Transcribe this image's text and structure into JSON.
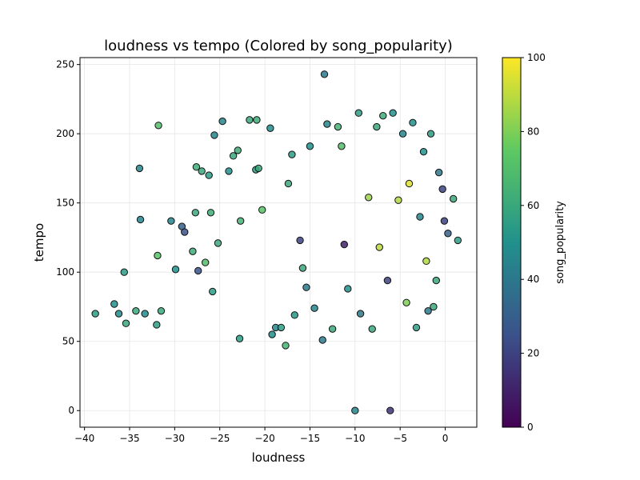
{
  "chart_data": {
    "type": "scatter",
    "title": "loudness vs tempo (Colored by song_popularity)",
    "xlabel": "loudness",
    "ylabel": "tempo",
    "xlim": [
      -40.5,
      3.5
    ],
    "ylim": [
      -12,
      255
    ],
    "xticks": [
      -40,
      -35,
      -30,
      -25,
      -20,
      -15,
      -10,
      -5,
      0
    ],
    "yticks": [
      0,
      50,
      100,
      150,
      200,
      250
    ],
    "grid": true,
    "colorbar": {
      "label": "song_popularity",
      "range": [
        0,
        100
      ],
      "ticks": [
        0,
        20,
        40,
        60,
        80,
        100
      ],
      "colormap": "viridis",
      "stops": [
        "#440154",
        "#3b528b",
        "#21918c",
        "#5ec962",
        "#fde725"
      ]
    },
    "points": [
      [
        -38.8,
        70,
        55
      ],
      [
        -36.7,
        77,
        50
      ],
      [
        -36.2,
        70,
        48
      ],
      [
        -35.6,
        100,
        55
      ],
      [
        -35.4,
        63,
        60
      ],
      [
        -34.3,
        72,
        60
      ],
      [
        -33.9,
        175,
        45
      ],
      [
        -33.8,
        138,
        45
      ],
      [
        -33.3,
        70,
        48
      ],
      [
        -31.8,
        206,
        70
      ],
      [
        -31.9,
        112,
        72
      ],
      [
        -32.0,
        62,
        55
      ],
      [
        -31.5,
        72,
        60
      ],
      [
        -30.4,
        137,
        45
      ],
      [
        -29.9,
        102,
        50
      ],
      [
        -29.2,
        133,
        30
      ],
      [
        -28.9,
        129,
        25
      ],
      [
        -28.0,
        115,
        62
      ],
      [
        -27.6,
        176,
        62
      ],
      [
        -27.7,
        143,
        60
      ],
      [
        -27.4,
        101,
        25
      ],
      [
        -27.0,
        173,
        60
      ],
      [
        -26.2,
        170,
        55
      ],
      [
        -26.6,
        107,
        70
      ],
      [
        -26.0,
        143,
        62
      ],
      [
        -25.6,
        199,
        45
      ],
      [
        -25.8,
        86,
        55
      ],
      [
        -25.2,
        121,
        60
      ],
      [
        -24.7,
        209,
        45
      ],
      [
        -24.0,
        173,
        50
      ],
      [
        -23.5,
        184,
        60
      ],
      [
        -23.0,
        188,
        62
      ],
      [
        -22.7,
        137,
        65
      ],
      [
        -22.8,
        52,
        55
      ],
      [
        -21.7,
        210,
        60
      ],
      [
        -21.0,
        174,
        55
      ],
      [
        -20.9,
        210,
        62
      ],
      [
        -20.7,
        175,
        60
      ],
      [
        -20.3,
        145,
        72
      ],
      [
        -19.4,
        204,
        48
      ],
      [
        -19.2,
        55,
        50
      ],
      [
        -18.8,
        60,
        45
      ],
      [
        -18.2,
        60,
        55
      ],
      [
        -17.7,
        47,
        65
      ],
      [
        -17.4,
        164,
        60
      ],
      [
        -17.0,
        185,
        55
      ],
      [
        -16.7,
        69,
        52
      ],
      [
        -16.1,
        123,
        20
      ],
      [
        -15.8,
        103,
        60
      ],
      [
        -15.4,
        89,
        40
      ],
      [
        -15.0,
        191,
        50
      ],
      [
        -14.5,
        74,
        45
      ],
      [
        -13.6,
        51,
        40
      ],
      [
        -13.4,
        243,
        40
      ],
      [
        -13.1,
        207,
        45
      ],
      [
        -12.5,
        59,
        60
      ],
      [
        -11.9,
        205,
        65
      ],
      [
        -11.5,
        191,
        70
      ],
      [
        -11.2,
        120,
        10
      ],
      [
        -10.8,
        88,
        50
      ],
      [
        -10.0,
        0,
        45
      ],
      [
        -9.6,
        215,
        55
      ],
      [
        -9.4,
        70,
        40
      ],
      [
        -8.5,
        154,
        85
      ],
      [
        -8.1,
        59,
        60
      ],
      [
        -7.6,
        205,
        60
      ],
      [
        -7.3,
        118,
        90
      ],
      [
        -6.9,
        213,
        62
      ],
      [
        -6.4,
        94,
        20
      ],
      [
        -6.1,
        0,
        15
      ],
      [
        -5.8,
        215,
        50
      ],
      [
        -5.2,
        152,
        88
      ],
      [
        -4.7,
        200,
        45
      ],
      [
        -4.3,
        78,
        80
      ],
      [
        -4.0,
        164,
        95
      ],
      [
        -3.6,
        208,
        50
      ],
      [
        -3.2,
        60,
        55
      ],
      [
        -2.8,
        140,
        45
      ],
      [
        -2.4,
        187,
        50
      ],
      [
        -2.1,
        108,
        88
      ],
      [
        -1.9,
        72,
        40
      ],
      [
        -1.6,
        200,
        55
      ],
      [
        -1.3,
        75,
        60
      ],
      [
        -1.0,
        94,
        60
      ],
      [
        -0.7,
        172,
        40
      ],
      [
        -0.3,
        160,
        20
      ],
      [
        -0.1,
        137,
        20
      ],
      [
        0.3,
        128,
        30
      ],
      [
        0.9,
        153,
        60
      ],
      [
        1.4,
        123,
        55
      ]
    ]
  }
}
